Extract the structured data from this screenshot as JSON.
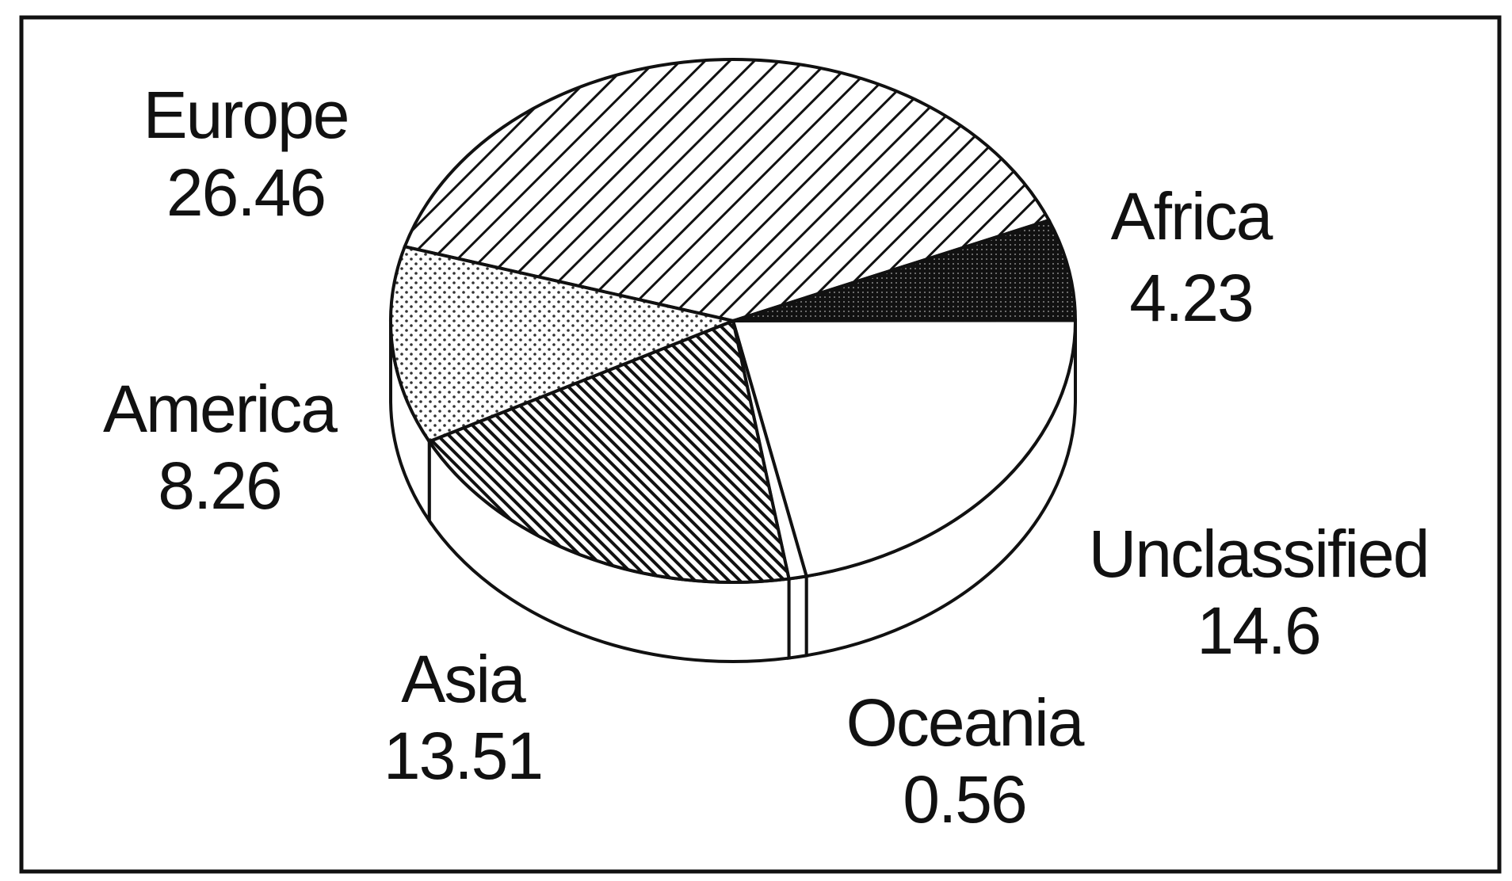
{
  "chart_data": {
    "type": "pie",
    "categories": [
      "Europe",
      "Africa",
      "Unclassified",
      "Oceania",
      "Asia",
      "America"
    ],
    "values": [
      26.46,
      4.23,
      14.6,
      0.56,
      13.51,
      8.26
    ]
  }
}
